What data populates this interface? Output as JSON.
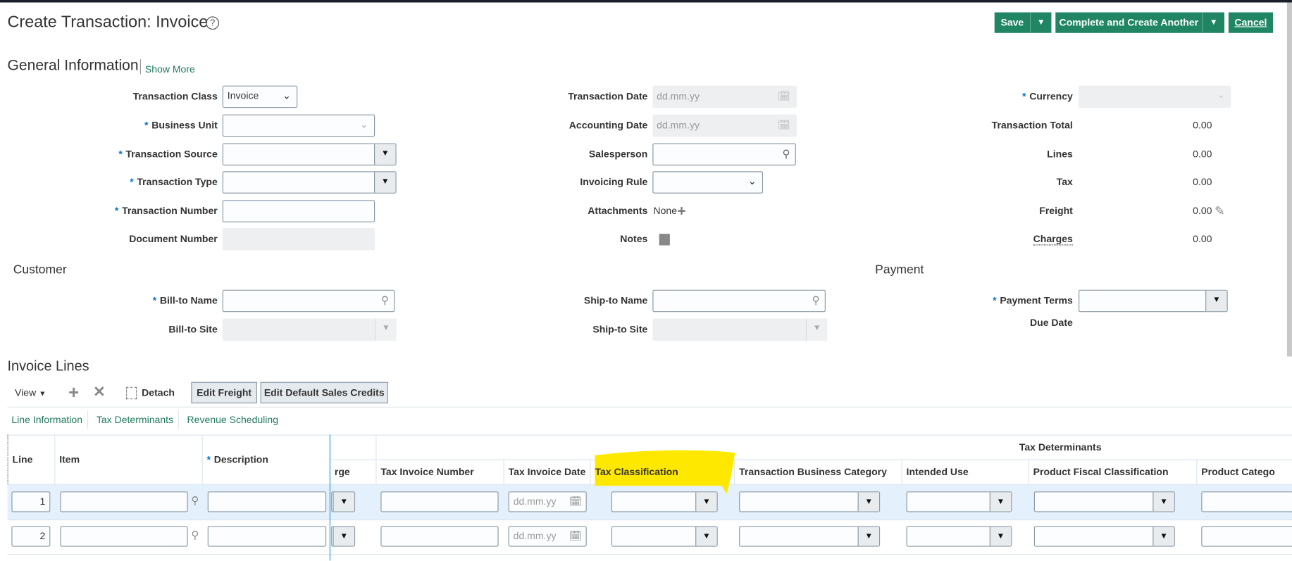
{
  "header": {
    "title": "Create Transaction: Invoice",
    "help_icon": "?",
    "save": "Save",
    "complete": "Complete and Create Another",
    "cancel": "Cancel",
    "accent": "#1f8562"
  },
  "general": {
    "title": "General Information",
    "show_more": "Show More",
    "transaction_class": {
      "label": "Transaction Class",
      "value": "Invoice"
    },
    "business_unit": {
      "label": "Business Unit"
    },
    "transaction_source": {
      "label": "Transaction Source"
    },
    "transaction_type": {
      "label": "Transaction Type"
    },
    "transaction_number": {
      "label": "Transaction Number"
    },
    "document_number": {
      "label": "Document Number"
    },
    "transaction_date": {
      "label": "Transaction Date",
      "placeholder": "dd.mm.yy"
    },
    "accounting_date": {
      "label": "Accounting Date",
      "placeholder": "dd.mm.yy"
    },
    "salesperson": {
      "label": "Salesperson"
    },
    "invoicing_rule": {
      "label": "Invoicing Rule"
    },
    "attachments": {
      "label": "Attachments",
      "value": "None"
    },
    "notes": {
      "label": "Notes"
    },
    "currency": {
      "label": "Currency"
    },
    "transaction_total": {
      "label": "Transaction Total",
      "value": "0.00"
    },
    "lines": {
      "label": "Lines",
      "value": "0.00"
    },
    "tax": {
      "label": "Tax",
      "value": "0.00"
    },
    "freight": {
      "label": "Freight",
      "value": "0.00"
    },
    "charges": {
      "label": "Charges",
      "value": "0.00"
    }
  },
  "customer": {
    "title": "Customer",
    "bill_to_name": "Bill-to Name",
    "bill_to_site": "Bill-to Site",
    "ship_to_name": "Ship-to Name",
    "ship_to_site": "Ship-to Site"
  },
  "payment": {
    "title": "Payment",
    "payment_terms": "Payment Terms",
    "due_date": "Due Date"
  },
  "lines_section": {
    "title": "Invoice Lines",
    "view": "View",
    "detach": "Detach",
    "edit_freight": "Edit Freight",
    "edit_sales_credits": "Edit Default Sales Credits",
    "tabs": [
      "Line Information",
      "Tax Determinants",
      "Revenue Scheduling"
    ],
    "group_header": "Tax Determinants",
    "columns": {
      "line": "Line",
      "item": "Item",
      "description": "Description",
      "charge": "rge",
      "tax_invoice_number": "Tax Invoice Number",
      "tax_invoice_date": "Tax Invoice Date",
      "tax_classification": "Tax Classification",
      "business_category": "Transaction Business Category",
      "intended_use": "Intended Use",
      "product_fiscal": "Product Fiscal Classification",
      "product_category": "Product Catego"
    },
    "rows": [
      {
        "line": "1",
        "date_placeholder": "dd.mm.yy"
      },
      {
        "line": "2",
        "date_placeholder": "dd.mm.yy"
      }
    ],
    "highlight_color": "#ffe800"
  }
}
